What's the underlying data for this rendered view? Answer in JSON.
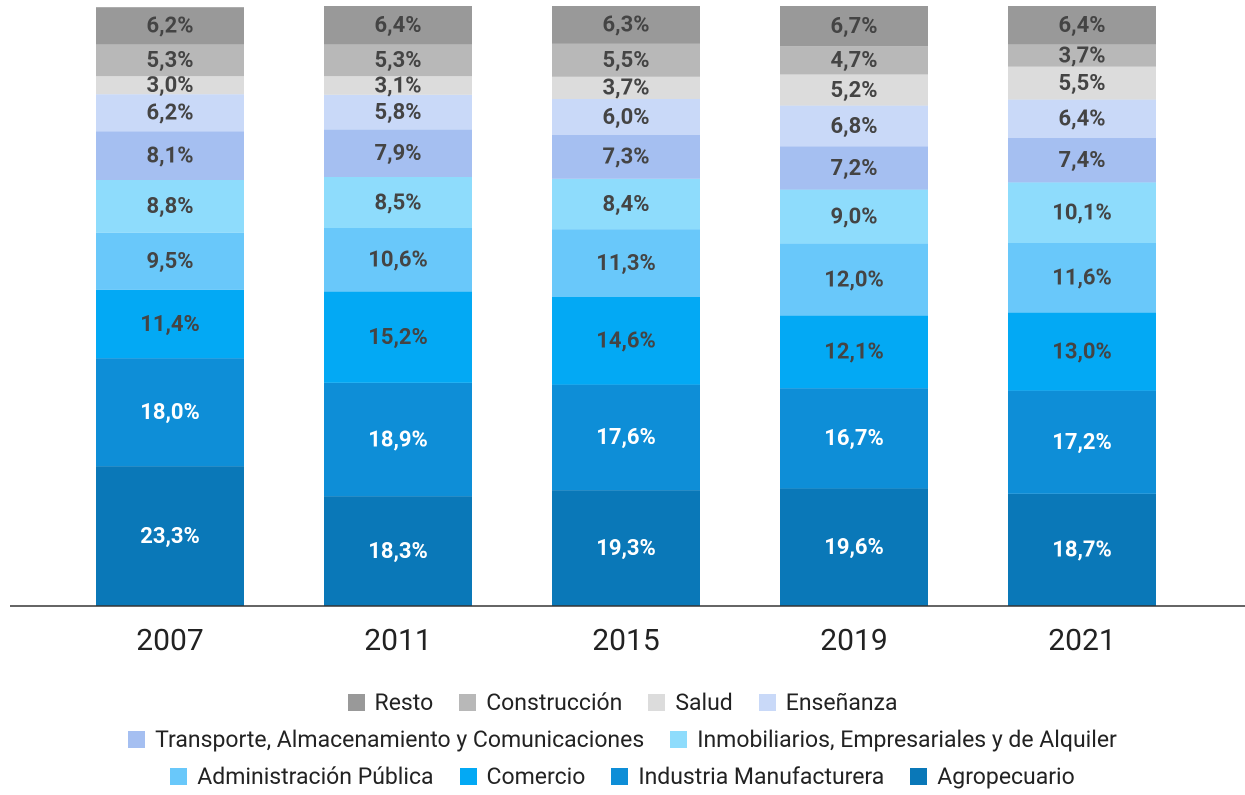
{
  "chart_data": {
    "type": "stacked_bar",
    "categories": [
      "2007",
      "2011",
      "2015",
      "2019",
      "2021"
    ],
    "ylim": [
      0,
      100
    ],
    "series": [
      {
        "name": "Agropecuario",
        "color": "#0a78b8",
        "label_color": "#ffffff",
        "values": [
          23.3,
          18.3,
          19.3,
          19.6,
          18.7
        ],
        "value_labels": [
          "23,3%",
          "18,3%",
          "19,3%",
          "19,6%",
          "18,7%"
        ]
      },
      {
        "name": "Industria Manufacturera",
        "color": "#0e8ed7",
        "label_color": "#ffffff",
        "values": [
          18.0,
          18.9,
          17.6,
          16.7,
          17.2
        ],
        "value_labels": [
          "18,0%",
          "18,9%",
          "17,6%",
          "16,7%",
          "17,2%"
        ]
      },
      {
        "name": "Comercio",
        "color": "#03a9f4",
        "label_color": "#444444",
        "values": [
          11.4,
          15.2,
          14.6,
          12.1,
          13.0
        ],
        "value_labels": [
          "11,4%",
          "15,2%",
          "14,6%",
          "12,1%",
          "13,0%"
        ]
      },
      {
        "name": "Administración Pública",
        "color": "#69c8fa",
        "label_color": "#444444",
        "values": [
          9.5,
          10.6,
          11.3,
          12.0,
          11.6
        ],
        "value_labels": [
          "9,5%",
          "10,6%",
          "11,3%",
          "12,0%",
          "11,6%"
        ]
      },
      {
        "name": "Inmobiliarios, Empresariales y de Alquiler",
        "color": "#8edcfc",
        "label_color": "#444444",
        "values": [
          8.8,
          8.5,
          8.4,
          9.0,
          10.1
        ],
        "value_labels": [
          "8,8%",
          "8,5%",
          "8,4%",
          "9,0%",
          "10,1%"
        ]
      },
      {
        "name": "Transporte, Almacenamiento y Comunicaciones",
        "color": "#a5bff1",
        "label_color": "#444444",
        "values": [
          8.1,
          7.9,
          7.3,
          7.2,
          7.4
        ],
        "value_labels": [
          "8,1%",
          "7,9%",
          "7,3%",
          "7,2%",
          "7,4%"
        ]
      },
      {
        "name": "Enseñanza",
        "color": "#c9d9f8",
        "label_color": "#444444",
        "values": [
          6.2,
          5.8,
          6.0,
          6.8,
          6.4
        ],
        "value_labels": [
          "6,2%",
          "5,8%",
          "6,0%",
          "6,8%",
          "6,4%"
        ]
      },
      {
        "name": "Salud",
        "color": "#dcdcdc",
        "label_color": "#444444",
        "values": [
          3.0,
          3.1,
          3.7,
          5.2,
          5.5
        ],
        "value_labels": [
          "3,0%",
          "3,1%",
          "3,7%",
          "5,2%",
          "5,5%"
        ]
      },
      {
        "name": "Construcción",
        "color": "#b8b8b8",
        "label_color": "#444444",
        "values": [
          5.3,
          5.3,
          5.5,
          4.7,
          3.7
        ],
        "value_labels": [
          "5,3%",
          "5,3%",
          "5,5%",
          "4,7%",
          "3,7%"
        ]
      },
      {
        "name": "Resto",
        "color": "#999999",
        "label_color": "#444444",
        "values": [
          6.2,
          6.4,
          6.3,
          6.7,
          6.4
        ],
        "value_labels": [
          "6,2%",
          "6,4%",
          "6,3%",
          "6,7%",
          "6,4%"
        ]
      }
    ]
  }
}
